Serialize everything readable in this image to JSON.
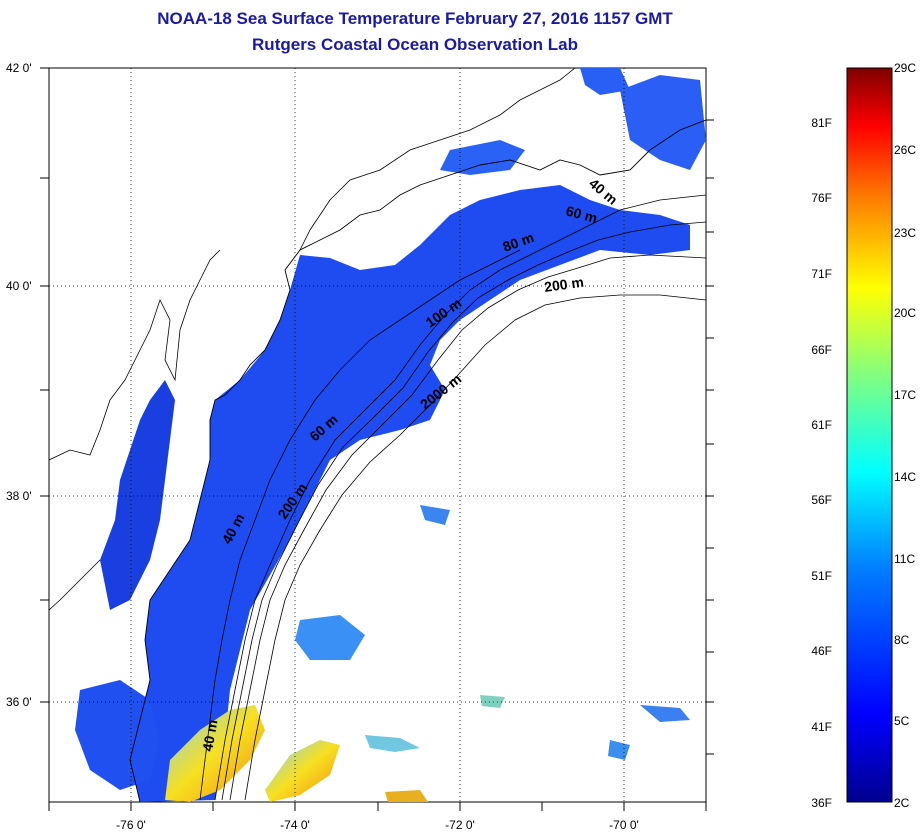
{
  "title": {
    "line1": "NOAA-18 Sea Surface Temperature February 27, 2016 1157 GMT",
    "line2": "Rutgers Coastal Ocean Observation Lab"
  },
  "axes": {
    "lat_labels": [
      "42 0'",
      "40 0'",
      "38 0'",
      "36 0'"
    ],
    "lon_labels": [
      "-76 0'",
      "-74 0'",
      "-72 0'",
      "-70 0'"
    ]
  },
  "contours": {
    "labels": [
      "40 m",
      "60 m",
      "80 m",
      "200 m",
      "100 m",
      "2000 m",
      "60 m",
      "200 m",
      "40 m",
      "40 m"
    ]
  },
  "colorbar": {
    "fahrenheit": [
      "81F",
      "76F",
      "71F",
      "66F",
      "61F",
      "56F",
      "51F",
      "46F",
      "41F",
      "36F"
    ],
    "celsius": [
      "29C",
      "26C",
      "23C",
      "20C",
      "17C",
      "14C",
      "11C",
      "8C",
      "5C",
      "2C"
    ]
  },
  "colors": {
    "title": "#1a1aa8",
    "cold": "#1f3ff0",
    "warm": "#f0a020"
  }
}
